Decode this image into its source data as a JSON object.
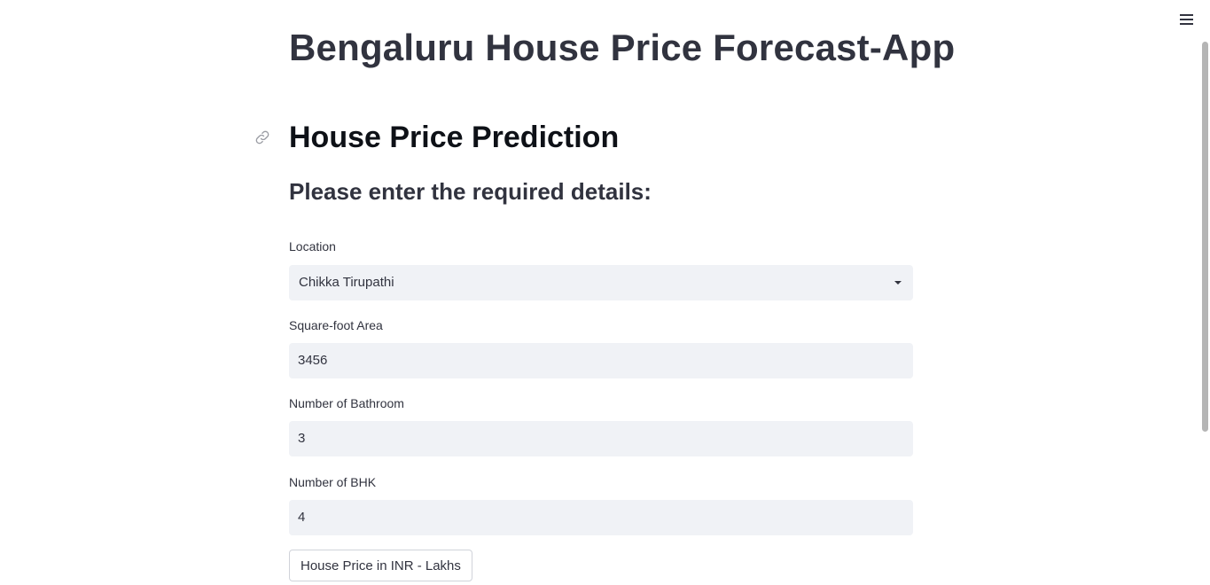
{
  "header": {
    "menu_icon": "hamburger-icon"
  },
  "main": {
    "app_title": "Bengaluru House Price Forecast-App",
    "section_title": "House Price Prediction",
    "section_link_icon": "link-icon",
    "subtitle": "Please enter the required details:"
  },
  "form": {
    "location": {
      "label": "Location",
      "value": "Chikka Tirupathi"
    },
    "sqft": {
      "label": "Square-foot Area",
      "value": "3456"
    },
    "bath": {
      "label": "Number of Bathroom",
      "value": "3"
    },
    "bhk": {
      "label": "Number of BHK",
      "value": "4"
    },
    "submit_label": "House Price in INR - Lakhs"
  },
  "colors": {
    "text": "#31333f",
    "input_bg": "#f0f2f6",
    "button_border": "#d0d3da"
  }
}
